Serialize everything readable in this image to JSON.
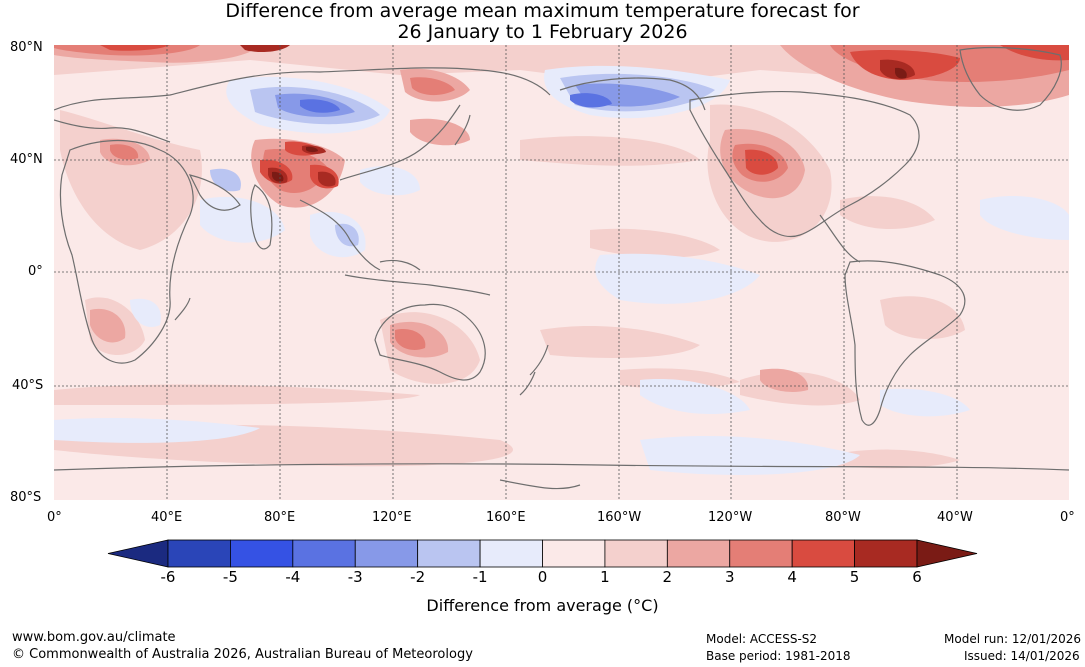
{
  "title": {
    "line1": "Difference from average mean maximum temperature forecast for",
    "line2": "26 January to 1 February 2026"
  },
  "map": {
    "lat_labels": [
      "80°N",
      "40°N",
      "0°",
      "40°S",
      "80°S"
    ],
    "lon_labels": [
      "0°",
      "40°E",
      "80°E",
      "120°E",
      "160°E",
      "160°W",
      "120°W",
      "80°W",
      "40°W",
      "0°"
    ]
  },
  "colorbar": {
    "ticks": [
      "-6",
      "-5",
      "-4",
      "-3",
      "-2",
      "-1",
      "0",
      "1",
      "2",
      "3",
      "4",
      "5",
      "6"
    ],
    "colors": [
      "#1b2a80",
      "#2a45b8",
      "#3552e4",
      "#5a72e2",
      "#8799e8",
      "#bac5f1",
      "#e7ebfb",
      "#fbe9e8",
      "#f4d0cd",
      "#eca7a2",
      "#e47e76",
      "#d94b40",
      "#a82a22",
      "#7a1b15"
    ],
    "label": "Difference from average (°C)"
  },
  "footer": {
    "url": "www.bom.gov.au/climate",
    "copyright": "© Commonwealth of Australia 2026, Australian Bureau of Meteorology",
    "model": "Model: ACCESS-S2",
    "base_period": "Base period: 1981-2018",
    "model_run": "Model run: 12/01/2026",
    "issued": "Issued: 14/01/2026"
  }
}
